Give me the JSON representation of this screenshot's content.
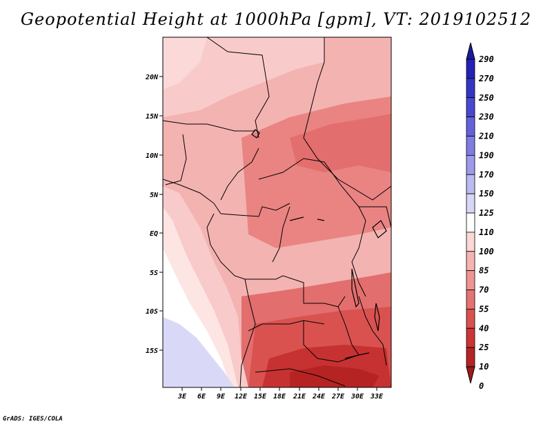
{
  "title": "Geopotential Height at 1000hPa [gpm], VT: 2019102512",
  "credit": "GrADS: IGES/COLA",
  "map": {
    "lon_range": [
      0,
      35
    ],
    "lat_range": [
      -20,
      24
    ],
    "lon_ticks": [
      "3E",
      "6E",
      "9E",
      "12E",
      "15E",
      "18E",
      "21E",
      "24E",
      "27E",
      "30E",
      "33E"
    ],
    "lat_ticks": [
      "20N",
      "15N",
      "10N",
      "5N",
      "EQ",
      "5S",
      "10S",
      "15S"
    ],
    "field_trend": "heights increase toward the west/ocean (white to pale lavender off Angola) and decrease toward the south-east (deep red over Zambia/Zimbabwe)"
  },
  "colorbar": {
    "levels": [
      "290",
      "270",
      "250",
      "230",
      "210",
      "190",
      "170",
      "150",
      "125",
      "110",
      "100",
      "85",
      "70",
      "55",
      "40",
      "25",
      "10",
      "0"
    ],
    "colors": [
      "#1b1aa0",
      "#2422b4",
      "#3535c4",
      "#4a48d0",
      "#6462da",
      "#7f7de2",
      "#9d9bea",
      "#bbbaf1",
      "#d7d6f7",
      "#ffffff",
      "#fcd7d6",
      "#f5b4b2",
      "#ee9593",
      "#e47371",
      "#d95250",
      "#cc3534",
      "#b52423",
      "#9c1a1a"
    ]
  }
}
